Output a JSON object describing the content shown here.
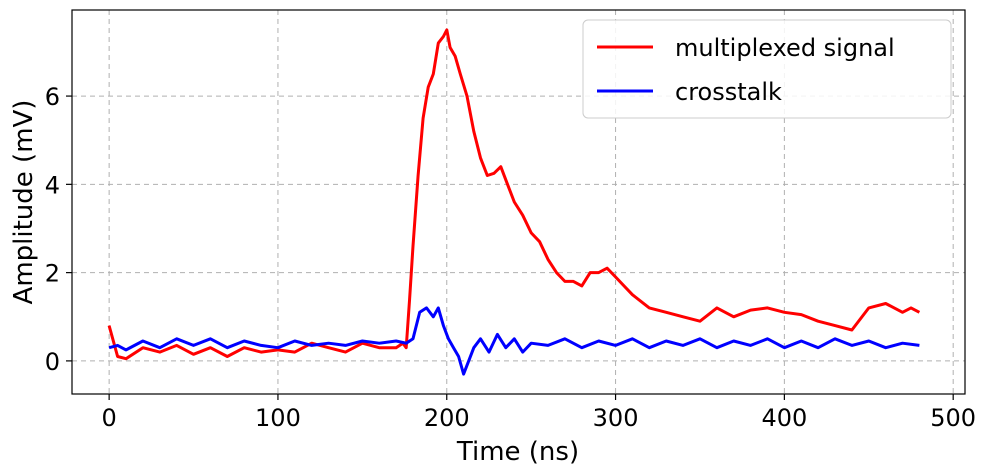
{
  "chart_data": {
    "type": "line",
    "title": "",
    "xlabel": "Time (ns)",
    "ylabel": "Amplitude (mV)",
    "xlim": [
      -22,
      507
    ],
    "ylim": [
      -0.75,
      7.95
    ],
    "xticks": [
      0,
      100,
      200,
      300,
      400,
      500
    ],
    "yticks": [
      0,
      2,
      4,
      6
    ],
    "grid": true,
    "legend_position": "top-right",
    "series": [
      {
        "name": "multiplexed signal",
        "color": "#ff0000",
        "x": [
          0,
          5,
          10,
          20,
          30,
          40,
          50,
          60,
          70,
          80,
          90,
          100,
          110,
          120,
          130,
          140,
          150,
          160,
          170,
          174,
          176,
          178,
          180,
          183,
          186,
          189,
          192,
          195,
          198,
          200,
          202,
          205,
          208,
          212,
          216,
          220,
          224,
          228,
          232,
          236,
          240,
          245,
          250,
          255,
          260,
          265,
          270,
          275,
          280,
          285,
          290,
          295,
          300,
          305,
          310,
          320,
          330,
          340,
          350,
          360,
          370,
          380,
          390,
          400,
          410,
          420,
          430,
          440,
          450,
          460,
          470,
          475,
          480
        ],
        "values": [
          0.8,
          0.1,
          0.05,
          0.3,
          0.2,
          0.35,
          0.15,
          0.3,
          0.1,
          0.3,
          0.2,
          0.25,
          0.2,
          0.4,
          0.3,
          0.2,
          0.4,
          0.3,
          0.3,
          0.4,
          0.3,
          1.4,
          2.6,
          4.2,
          5.5,
          6.2,
          6.5,
          7.2,
          7.35,
          7.5,
          7.1,
          6.9,
          6.5,
          6.0,
          5.2,
          4.6,
          4.2,
          4.25,
          4.4,
          4.0,
          3.6,
          3.3,
          2.9,
          2.7,
          2.3,
          2.0,
          1.8,
          1.8,
          1.7,
          2.0,
          2.0,
          2.1,
          1.9,
          1.7,
          1.5,
          1.2,
          1.1,
          1.0,
          0.9,
          1.2,
          1.0,
          1.15,
          1.2,
          1.1,
          1.05,
          0.9,
          0.8,
          0.7,
          1.2,
          1.3,
          1.1,
          1.2,
          1.1
        ]
      },
      {
        "name": "crosstalk",
        "color": "#0000ff",
        "x": [
          0,
          5,
          10,
          20,
          30,
          40,
          50,
          60,
          70,
          80,
          90,
          100,
          110,
          120,
          130,
          140,
          150,
          160,
          170,
          176,
          180,
          184,
          188,
          192,
          195,
          198,
          201,
          204,
          207,
          210,
          213,
          216,
          220,
          225,
          230,
          235,
          240,
          245,
          250,
          260,
          270,
          280,
          290,
          300,
          310,
          320,
          330,
          340,
          350,
          360,
          370,
          380,
          390,
          400,
          410,
          420,
          430,
          440,
          450,
          460,
          470,
          480
        ],
        "values": [
          0.3,
          0.35,
          0.25,
          0.45,
          0.3,
          0.5,
          0.35,
          0.5,
          0.3,
          0.45,
          0.35,
          0.3,
          0.45,
          0.35,
          0.4,
          0.35,
          0.45,
          0.4,
          0.45,
          0.4,
          0.5,
          1.1,
          1.2,
          1.0,
          1.2,
          0.8,
          0.5,
          0.3,
          0.1,
          -0.3,
          0.0,
          0.3,
          0.5,
          0.2,
          0.6,
          0.3,
          0.5,
          0.2,
          0.4,
          0.35,
          0.5,
          0.3,
          0.45,
          0.35,
          0.5,
          0.3,
          0.45,
          0.35,
          0.5,
          0.3,
          0.45,
          0.35,
          0.5,
          0.3,
          0.45,
          0.3,
          0.5,
          0.35,
          0.45,
          0.3,
          0.4,
          0.35
        ]
      }
    ]
  }
}
